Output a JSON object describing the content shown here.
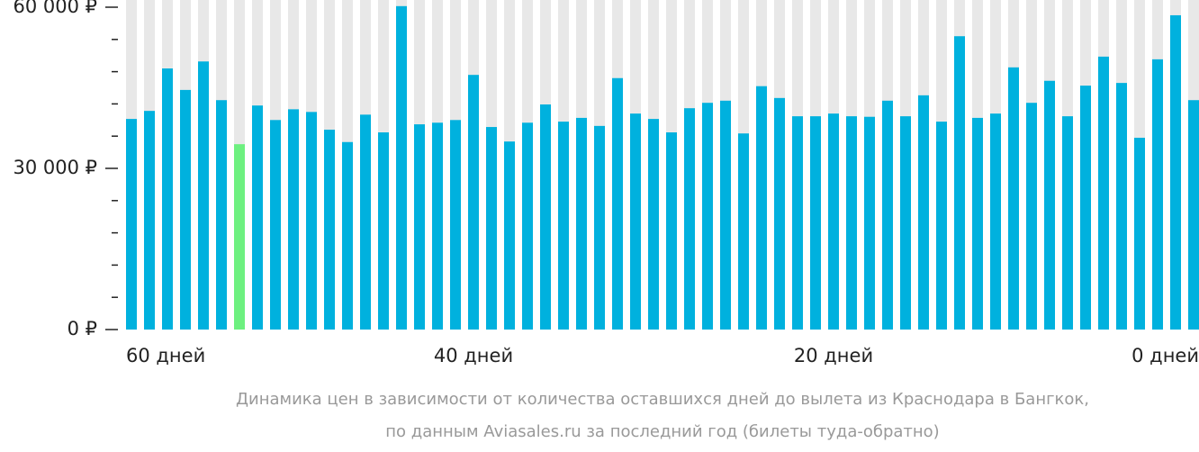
{
  "chart_data": {
    "type": "bar",
    "categories": [
      "60 дней",
      null,
      null,
      null,
      null,
      null,
      null,
      null,
      null,
      null,
      null,
      null,
      null,
      null,
      null,
      null,
      null,
      null,
      null,
      "40 дней",
      null,
      null,
      null,
      null,
      null,
      null,
      null,
      null,
      null,
      null,
      null,
      null,
      null,
      null,
      null,
      null,
      null,
      null,
      null,
      "20 дней",
      null,
      null,
      null,
      null,
      null,
      null,
      null,
      null,
      null,
      null,
      null,
      null,
      null,
      null,
      null,
      null,
      null,
      null,
      null,
      "0 дней"
    ],
    "values": [
      39200,
      40700,
      48600,
      44600,
      49900,
      42700,
      34500,
      41700,
      39000,
      41000,
      40500,
      37200,
      34900,
      40000,
      36700,
      60200,
      38200,
      38500,
      39000,
      47400,
      37700,
      35000,
      38500,
      41900,
      38700,
      39400,
      37900,
      46800,
      40200,
      39200,
      36700,
      41200,
      42200,
      42600,
      36500,
      45300,
      43100,
      39700,
      39700,
      40200,
      39700,
      39600,
      42600,
      39700,
      43600,
      38700,
      54600,
      39400,
      40200,
      48800,
      42200,
      46300,
      39700,
      45400,
      50800,
      45900,
      35700,
      50300,
      58500,
      42700
    ],
    "colors": [
      "#00b1de",
      "#00b1de",
      "#00b1de",
      "#00b1de",
      "#00b1de",
      "#00b1de",
      "#6df07f",
      "#00b1de",
      "#00b1de",
      "#00b1de",
      "#00b1de",
      "#00b1de",
      "#00b1de",
      "#00b1de",
      "#00b1de",
      "#00b1de",
      "#00b1de",
      "#00b1de",
      "#00b1de",
      "#00b1de",
      "#00b1de",
      "#00b1de",
      "#00b1de",
      "#00b1de",
      "#00b1de",
      "#00b1de",
      "#00b1de",
      "#00b1de",
      "#00b1de",
      "#00b1de",
      "#00b1de",
      "#00b1de",
      "#00b1de",
      "#00b1de",
      "#00b1de",
      "#00b1de",
      "#00b1de",
      "#00b1de",
      "#00b1de",
      "#00b1de",
      "#00b1de",
      "#00b1de",
      "#00b1de",
      "#00b1de",
      "#00b1de",
      "#00b1de",
      "#00b1de",
      "#00b1de",
      "#00b1de",
      "#00b1de",
      "#00b1de",
      "#00b1de",
      "#00b1de",
      "#00b1de",
      "#00b1de",
      "#00b1de",
      "#00b1de",
      "#00b1de",
      "#00b1de",
      "#00b1de"
    ],
    "ylim": [
      0,
      60000
    ],
    "yticks": [
      {
        "value": 0,
        "label": "0 ₽"
      },
      {
        "value": 30000,
        "label": "30 000 ₽"
      },
      {
        "value": 60000,
        "label": "60 000 ₽"
      }
    ],
    "yminorticks": [
      6000,
      12000,
      18000,
      24000,
      36000,
      42000,
      48000,
      54000
    ],
    "caption": [
      "Динамика цен в зависимости от количества оставшихся дней до вылета из Краснодара в Бангкок,",
      "по данным Aviasales.ru за последний год (билеты туда-обратно)"
    ]
  }
}
